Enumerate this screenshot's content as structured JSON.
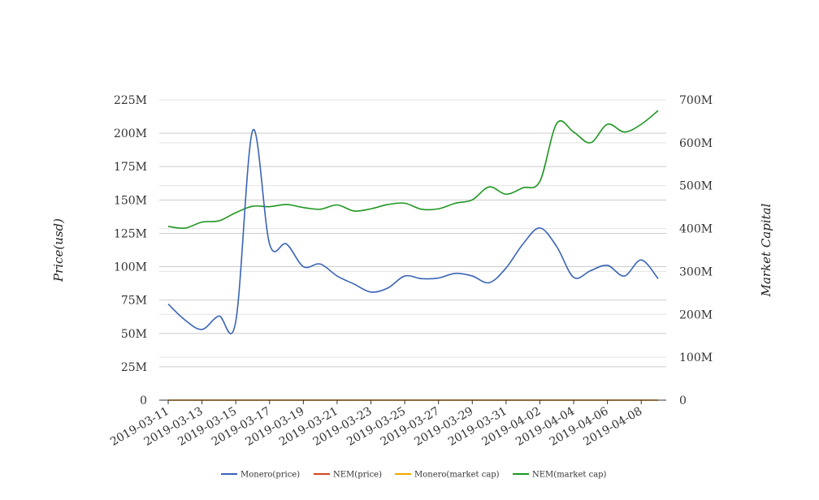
{
  "chart_data": {
    "type": "line",
    "x_ticks": [
      "2019-03-11",
      "2019-03-13",
      "2019-03-15",
      "2019-03-17",
      "2019-03-19",
      "2019-03-21",
      "2019-03-23",
      "2019-03-25",
      "2019-03-27",
      "2019-03-29",
      "2019-03-31",
      "2019-04-02",
      "2019-04-04",
      "2019-04-06",
      "2019-04-08"
    ],
    "x": [
      "2019-03-11",
      "2019-03-12",
      "2019-03-13",
      "2019-03-14",
      "2019-03-15",
      "2019-03-16",
      "2019-03-17",
      "2019-03-18",
      "2019-03-19",
      "2019-03-20",
      "2019-03-21",
      "2019-03-22",
      "2019-03-23",
      "2019-03-24",
      "2019-03-25",
      "2019-03-26",
      "2019-03-27",
      "2019-03-28",
      "2019-03-29",
      "2019-03-30",
      "2019-03-31",
      "2019-04-01",
      "2019-04-02",
      "2019-04-03",
      "2019-04-04",
      "2019-04-05",
      "2019-04-06",
      "2019-04-07",
      "2019-04-08",
      "2019-04-09"
    ],
    "y_left": {
      "label": "Price(usd)",
      "ticks": [
        "0",
        "25M",
        "50M",
        "75M",
        "100M",
        "125M",
        "150M",
        "175M",
        "200M",
        "225M"
      ],
      "range": [
        0,
        225000000
      ]
    },
    "y_right": {
      "label": "Market Capital",
      "ticks": [
        "0",
        "100M",
        "200M",
        "300M",
        "400M",
        "500M",
        "600M",
        "700M"
      ],
      "range": [
        0,
        700000000
      ]
    },
    "grid": true,
    "legend_position": "bottom",
    "series": [
      {
        "name": "Monero(price)",
        "axis": "left",
        "color": "#3a64b6",
        "values": [
          72000000,
          60000000,
          53000000,
          63000000,
          59000000,
          202000000,
          117000000,
          117000000,
          100000000,
          102000000,
          93000000,
          87000000,
          81000000,
          84000000,
          93000000,
          91000000,
          91500000,
          95000000,
          93000000,
          88000000,
          99000000,
          117000000,
          129000000,
          115000000,
          92000000,
          97000000,
          101000000,
          93000000,
          105000000,
          91000000
        ]
      },
      {
        "name": "NEM(price)",
        "axis": "left",
        "color": "#d2461c",
        "values": [
          0,
          0,
          0,
          0,
          0,
          0,
          0,
          0,
          0,
          0,
          0,
          0,
          0,
          0,
          0,
          0,
          0,
          0,
          0,
          0,
          0,
          0,
          0,
          0,
          0,
          0,
          0,
          0,
          0,
          0
        ]
      },
      {
        "name": "Monero(market cap)",
        "axis": "right",
        "color": "#f0a800",
        "values": [
          0,
          0,
          0,
          0,
          0,
          0,
          0,
          0,
          0,
          0,
          0,
          0,
          0,
          0,
          0,
          0,
          0,
          0,
          0,
          0,
          0,
          0,
          0,
          0,
          0,
          0,
          0,
          0,
          0,
          0
        ]
      },
      {
        "name": "NEM(market cap)",
        "axis": "right",
        "color": "#1e9620",
        "values": [
          405000000,
          401000000,
          415000000,
          418000000,
          437000000,
          452000000,
          451000000,
          456000000,
          449000000,
          445000000,
          455000000,
          441000000,
          446000000,
          456000000,
          459000000,
          445000000,
          446000000,
          459000000,
          467000000,
          497000000,
          480000000,
          495000000,
          510000000,
          645000000,
          625000000,
          600000000,
          643000000,
          625000000,
          643000000,
          675000000
        ]
      }
    ]
  }
}
